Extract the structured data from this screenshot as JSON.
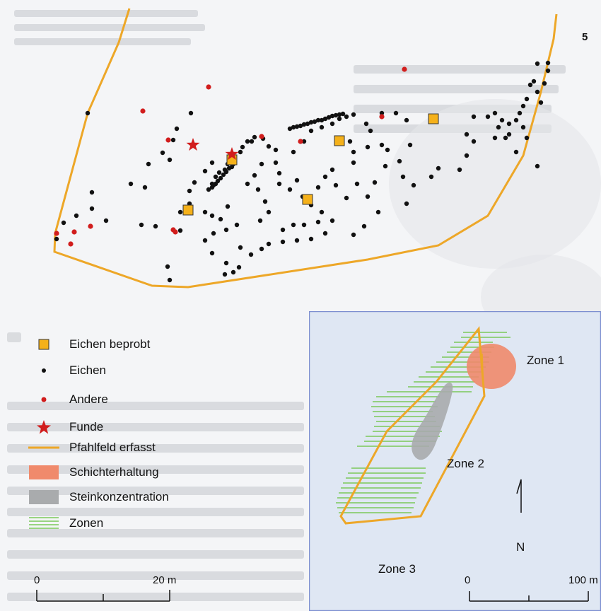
{
  "page_number": "5",
  "colors": {
    "boundary": "#eda728",
    "sampled_oak_fill": "#f5b11a",
    "oak": "#111111",
    "other": "#d11d1d",
    "finds": "#d11d1d",
    "layer_preservation": "#f08a6c",
    "stone_concentration": "#a9abad",
    "zones": "#7bc95a",
    "inset_background": "#dfe7f3"
  },
  "legend": {
    "items": [
      {
        "label": "Eichen beprobt",
        "icon": "orange-square-icon"
      },
      {
        "label": "Eichen",
        "icon": "black-dot-icon"
      },
      {
        "label": "Andere",
        "icon": "red-dot-icon"
      },
      {
        "label": "Funde",
        "icon": "red-star-icon"
      },
      {
        "label": "Pfahlfeld erfasst",
        "icon": "orange-line-icon"
      },
      {
        "label": "Schichterhaltung",
        "icon": "salmon-patch-icon"
      },
      {
        "label": "Steinkonzentration",
        "icon": "grey-patch-icon"
      },
      {
        "label": "Zonen",
        "icon": "green-stripes-icon"
      }
    ]
  },
  "site_scale": {
    "start": "0",
    "end": "20 m"
  },
  "inset": {
    "zones": [
      "Zone 1",
      "Zone 2",
      "Zone 3"
    ],
    "north_label": "N",
    "scale": {
      "start": "0",
      "end": "100 m"
    }
  }
}
